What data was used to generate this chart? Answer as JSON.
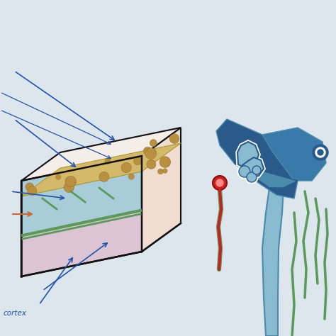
{
  "bg_color": "#dde5ed",
  "skull_white_color": "#f5ede8",
  "skull_diploe_color": "#d4b96a",
  "skull_diploe_dot_color": "#b89040",
  "dura_color": "#f0ddd0",
  "arachnoid_csf_color": "#a8ccd8",
  "pia_color": "#5a9a5a",
  "brain_color": "#ddc4d4",
  "brain_dark_color": "#c0a0b8",
  "csf_blue_color": "#4a8aaa",
  "csf_light_color": "#88bbd0",
  "sinus_dark_color": "#2a5a8a",
  "sinus_medium_color": "#3a7aaa",
  "vessel_red": "#cc2020",
  "vessel_red_dark": "#881010",
  "arrow_blue": "#2255aa",
  "arrow_orange": "#cc6633",
  "text_blue": "#1a4488",
  "box_line": "#111111",
  "white": "#ffffff",
  "green_vessel": "#4a8a4a"
}
